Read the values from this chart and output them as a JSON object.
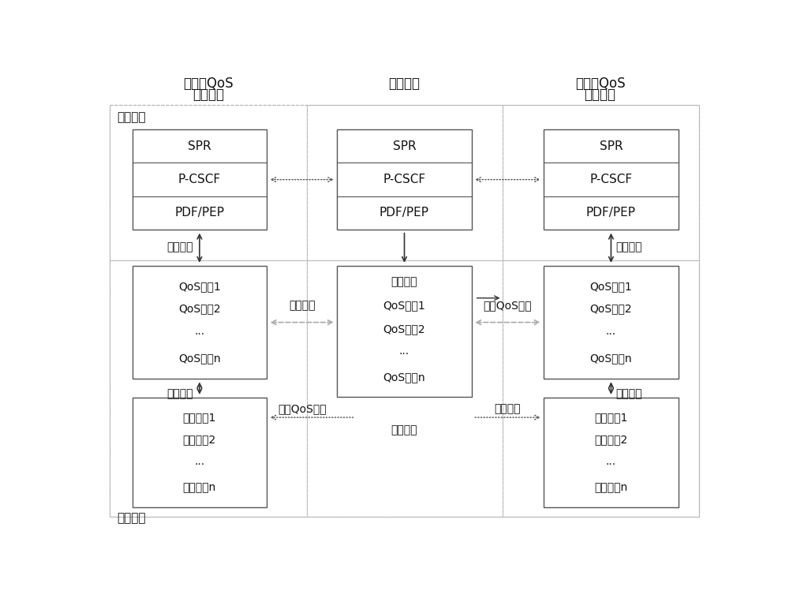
{
  "bg_color": "#ffffff",
  "box_face": "#ffffff",
  "box_edge": "#666666",
  "dashed_edge": "#999999",
  "arrow_color": "#333333",
  "font_color": "#111111",
  "title_left_1": "局域网QoS",
  "title_left_2": "控制模块",
  "title_center": "级联引擎",
  "title_right_1": "广域网QoS",
  "title_right_2": "控制模块",
  "label_ctrl": "控制平面",
  "label_data": "数据平面",
  "spr": "SPR",
  "pcscf": "P-CSCF",
  "pdfpep": "PDF/PEP",
  "qos1": "QoS队列1",
  "qos2": "QoS队列2",
  "qos_dots": "...",
  "qosn": "QoS队列n",
  "flex_buf": "柔性缓存",
  "ch1": "信道队列1",
  "ch2": "信道队列2",
  "ch_dots": "...",
  "chn": "信道队列n",
  "admit": "准入控制",
  "sched": "分组调度",
  "chan_wave": "信道波动",
  "upgrade_qos": "提升QoS级别",
  "closed_loop": "闭环耦合",
  "figsize": [
    10.0,
    7.58
  ],
  "dpi": 100
}
